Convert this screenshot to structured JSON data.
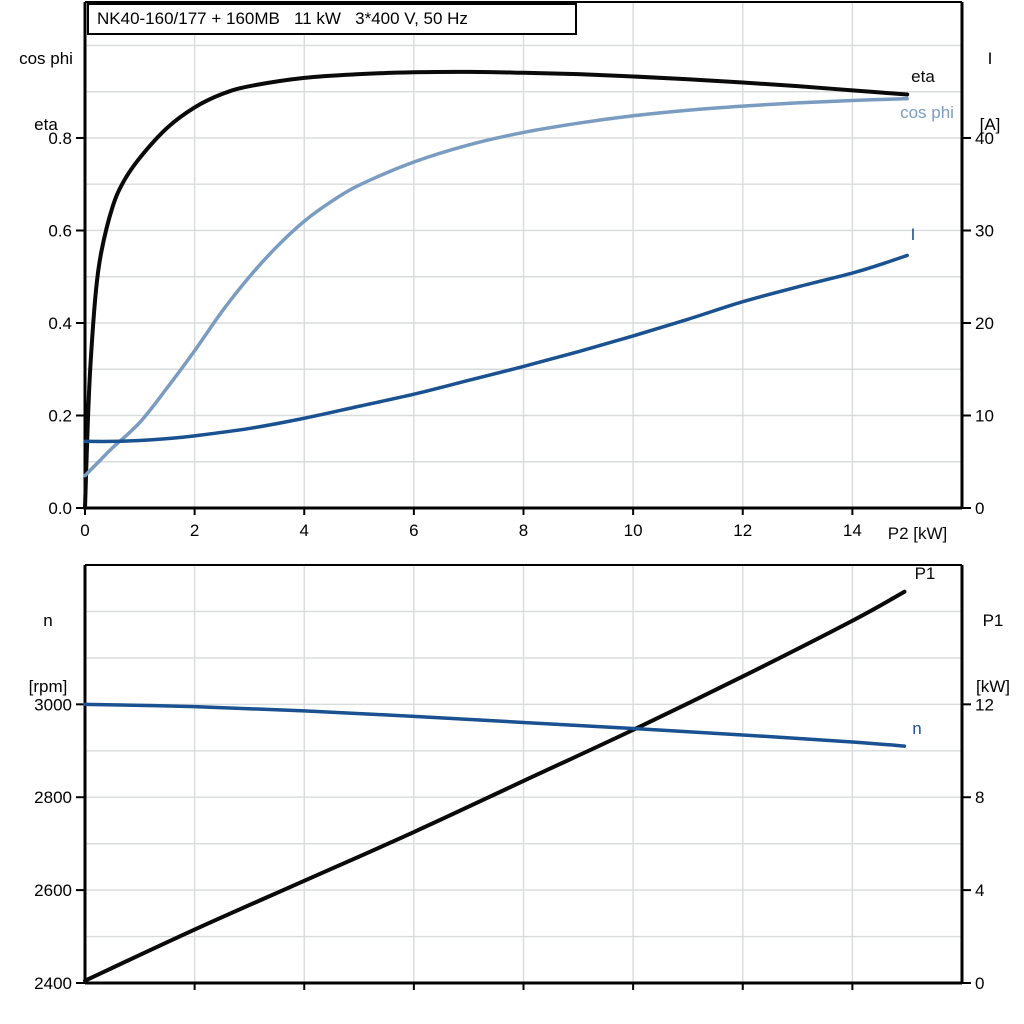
{
  "colors": {
    "curve_black": "#0a0a0a",
    "blue_dark": "#1a5190",
    "blue_light": "#7a9cc0",
    "grid": "#d8dbdc",
    "axis": "#000000"
  },
  "chart_data": [
    {
      "id": "top",
      "type": "line",
      "title": "NK40-160/177 + 160MB   11 kW   3*400 V, 50 Hz",
      "xlabel": "P2 [kW]",
      "x_range": [
        0,
        16
      ],
      "x_tick_values": [
        0,
        2,
        4,
        6,
        8,
        10,
        12,
        14
      ],
      "x_tick_labels": [
        "0",
        "2",
        "4",
        "6",
        "8",
        "10",
        "12",
        "14"
      ],
      "grid_x": [
        2,
        4,
        6,
        8,
        10,
        12,
        14
      ],
      "left_axis": {
        "title_lines": [
          "cos phi",
          "eta"
        ],
        "range": [
          0,
          1.094
        ],
        "tick_values": [
          0,
          0.2,
          0.4,
          0.6,
          0.8
        ],
        "tick_labels": [
          "0.0",
          "0.2",
          "0.4",
          "0.6",
          "0.8"
        ],
        "grid_values": [
          0.1,
          0.2,
          0.3,
          0.4,
          0.5,
          0.6,
          0.7,
          0.8,
          0.9,
          1.0
        ]
      },
      "right_axis": {
        "title_lines": [
          "I",
          "[A]"
        ],
        "range": [
          0,
          54.7
        ],
        "tick_values": [
          0,
          10,
          20,
          30,
          40
        ],
        "tick_labels": [
          "0",
          "10",
          "20",
          "30",
          "40"
        ]
      },
      "legend_position": "labels at right end of curves",
      "grid": "on",
      "series": [
        {
          "name": "eta",
          "label": "eta",
          "axis": "left",
          "color": "#0a0a0a",
          "width": 4,
          "x": [
            0,
            0.05,
            0.1,
            0.2,
            0.3,
            0.5,
            0.7,
            1.0,
            1.5,
            2.0,
            2.5,
            3.0,
            4.0,
            5.0,
            6.0,
            7.0,
            8.0,
            9.0,
            10,
            11,
            12,
            13,
            14,
            15
          ],
          "y": [
            0,
            0.18,
            0.31,
            0.47,
            0.555,
            0.65,
            0.705,
            0.757,
            0.822,
            0.866,
            0.895,
            0.912,
            0.93,
            0.938,
            0.942,
            0.943,
            0.941,
            0.938,
            0.933,
            0.927,
            0.92,
            0.912,
            0.903,
            0.894
          ]
        },
        {
          "name": "cos phi",
          "label": "cos phi",
          "axis": "left",
          "color": "#7a9cc0",
          "width": 3.5,
          "x": [
            0,
            0.25,
            0.5,
            1.0,
            1.5,
            2.0,
            2.5,
            3.0,
            3.5,
            4.0,
            4.5,
            5.0,
            6.0,
            7.0,
            8.0,
            9.0,
            10,
            11,
            12,
            13,
            14,
            15
          ],
          "y": [
            0.07,
            0.1,
            0.13,
            0.185,
            0.26,
            0.34,
            0.425,
            0.5,
            0.565,
            0.62,
            0.663,
            0.698,
            0.748,
            0.785,
            0.812,
            0.832,
            0.848,
            0.86,
            0.869,
            0.876,
            0.881,
            0.885
          ]
        },
        {
          "name": "I",
          "label": "I",
          "axis": "right",
          "color": "#1a5190",
          "width": 3.5,
          "x": [
            0,
            0.5,
            1,
            1.5,
            2,
            3,
            4,
            5,
            6,
            7,
            8,
            9,
            10,
            11,
            12,
            13,
            14,
            14.5,
            15
          ],
          "y": [
            7.2,
            7.2,
            7.3,
            7.5,
            7.8,
            8.6,
            9.7,
            11.0,
            12.3,
            13.8,
            15.3,
            16.9,
            18.6,
            20.4,
            22.3,
            23.9,
            25.4,
            26.3,
            27.3
          ]
        }
      ]
    },
    {
      "id": "bottom",
      "type": "line",
      "title": "",
      "xlabel": "",
      "x_range": [
        0,
        16
      ],
      "x_tick_values": [
        2,
        4,
        6,
        8,
        10,
        12,
        14
      ],
      "x_tick_labels": [
        "",
        "",
        "",
        "",
        "",
        "",
        ""
      ],
      "grid_x": [
        2,
        4,
        6,
        8,
        10,
        12,
        14
      ],
      "left_axis": {
        "title_lines": [
          "n",
          "[rpm]"
        ],
        "range": [
          2400,
          3300
        ],
        "tick_values": [
          3000,
          2800,
          2600,
          2400
        ],
        "tick_labels": [
          "3000",
          "2800",
          "2600",
          "2400"
        ],
        "grid_values": [
          2500,
          2600,
          2700,
          2800,
          2900,
          3000,
          3100,
          3200
        ]
      },
      "right_axis": {
        "title_lines": [
          "P1",
          "[kW]"
        ],
        "range": [
          0,
          18
        ],
        "tick_values": [
          12,
          8,
          4,
          0
        ],
        "tick_labels": [
          "12",
          "8",
          "4",
          "0"
        ]
      },
      "legend_position": "labels at right end of curves",
      "grid": "on",
      "series": [
        {
          "name": "P1",
          "label": "P1",
          "axis": "right",
          "color": "#0a0a0a",
          "width": 4,
          "x": [
            0,
            2,
            4,
            6,
            8,
            10,
            12,
            14,
            14.95
          ],
          "y": [
            0.1,
            2.3,
            4.4,
            6.5,
            8.7,
            10.9,
            13.2,
            15.6,
            16.85
          ]
        },
        {
          "name": "n",
          "label": "n",
          "axis": "left",
          "color": "#1a5190",
          "width": 3.5,
          "x": [
            0,
            2,
            4,
            6,
            8,
            10,
            12,
            14,
            14.95
          ],
          "y": [
            3000,
            2995,
            2986,
            2974,
            2961,
            2948,
            2934,
            2919,
            2910
          ]
        }
      ]
    }
  ]
}
